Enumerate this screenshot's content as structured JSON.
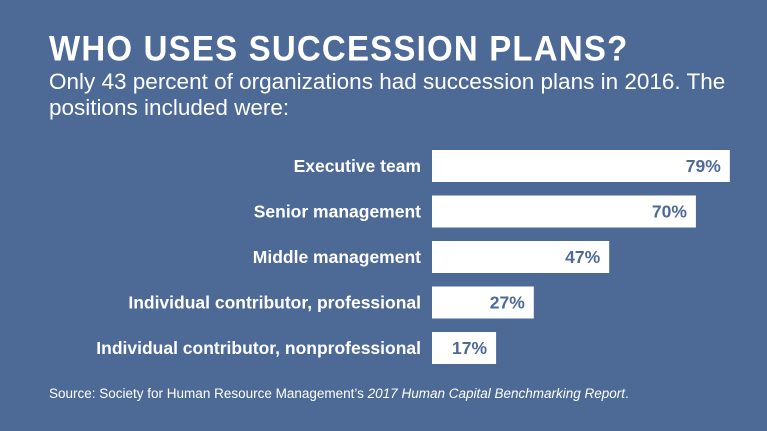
{
  "title": "WHO USES SUCCESSION PLANS?",
  "subtitle": "Only 43 percent of organizations had succession plans in 2016. The positions included were:",
  "source": {
    "prefix": "Source: Society for Human Resource Management’s ",
    "report": "2017 Human Capital Benchmarking Report",
    "suffix": "."
  },
  "colors": {
    "background": "#4d6a97",
    "bar": "#ffffff",
    "value_text": "#4d6a97"
  },
  "chart_data": {
    "type": "bar",
    "orientation": "horizontal",
    "categories": [
      "Executive team",
      "Senior management",
      "Middle management",
      "Individual contributor, professional",
      "Individual contributor, nonprofessional"
    ],
    "values": [
      79,
      70,
      47,
      27,
      17
    ],
    "value_labels": [
      "79%",
      "70%",
      "47%",
      "27%",
      "17%"
    ],
    "xlim": [
      0,
      100
    ],
    "grid": false,
    "legend": "none"
  }
}
